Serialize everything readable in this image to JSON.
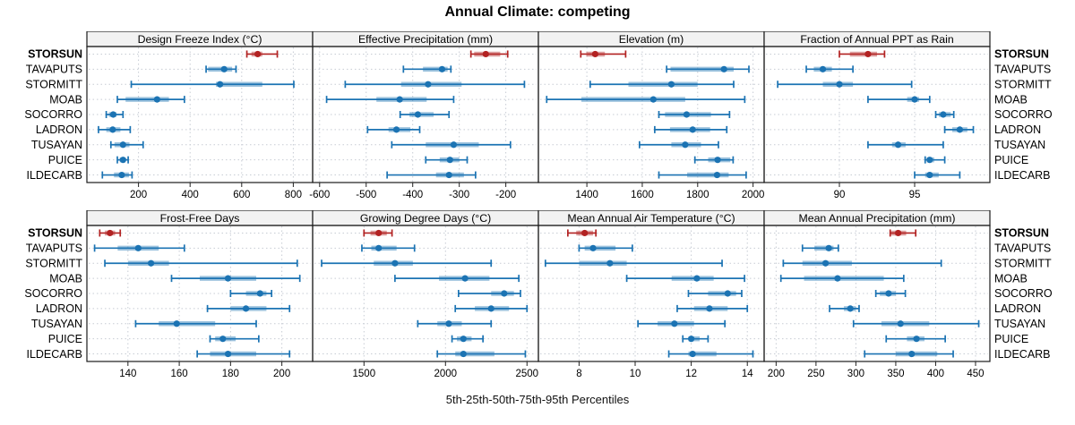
{
  "title": "Annual Climate: competing",
  "caption": "5th-25th-50th-75th-95th Percentiles",
  "highlight_site": "STORSUN",
  "sites": [
    "STORSUN",
    "TAVAPUTS",
    "STORMITT",
    "MOAB",
    "SOCORRO",
    "LADRON",
    "TUSAYAN",
    "PUICE",
    "ILDECARB"
  ],
  "colors": {
    "highlight": "#b22222",
    "normal": "#1b73b3",
    "grid": "#c7ccd4",
    "border": "#1b1b1b",
    "header_bg": "#f2f2f2",
    "tick": "#222222",
    "text": "#000000"
  },
  "percentile_levels": [
    5,
    25,
    50,
    75,
    95
  ],
  "chart_data": [
    {
      "type": "scatter",
      "style": "percentile-dotplot",
      "title": "Design Freeze Index (°C)",
      "xlim": [
        0,
        875
      ],
      "ticks": [
        200,
        400,
        600,
        800
      ],
      "values": [
        [
          620,
          638,
          662,
          680,
          738
        ],
        [
          462,
          470,
          532,
          563,
          578
        ],
        [
          172,
          500,
          516,
          680,
          802
        ],
        [
          118,
          150,
          272,
          318,
          378
        ],
        [
          75,
          85,
          102,
          115,
          140
        ],
        [
          45,
          75,
          100,
          130,
          168
        ],
        [
          93,
          107,
          140,
          165,
          218
        ],
        [
          118,
          127,
          140,
          150,
          160
        ],
        [
          60,
          105,
          135,
          163,
          175
        ]
      ]
    },
    {
      "type": "scatter",
      "style": "percentile-dotplot",
      "title": "Effective Precipitation (mm)",
      "xlim": [
        -615,
        -130
      ],
      "ticks": [
        -600,
        -500,
        -400,
        -300,
        -200
      ],
      "values": [
        [
          -275,
          -268,
          -243,
          -212,
          -196
        ],
        [
          -420,
          -378,
          -337,
          -325,
          -318
        ],
        [
          -545,
          -425,
          -367,
          -295,
          -160
        ],
        [
          -585,
          -478,
          -428,
          -370,
          -312
        ],
        [
          -427,
          -407,
          -389,
          -355,
          -322
        ],
        [
          -497,
          -452,
          -435,
          -405,
          -385
        ],
        [
          -445,
          -372,
          -312,
          -258,
          -190
        ],
        [
          -372,
          -342,
          -320,
          -300,
          -283
        ],
        [
          -455,
          -350,
          -322,
          -290,
          -265
        ]
      ]
    },
    {
      "type": "scatter",
      "style": "percentile-dotplot",
      "title": "Elevation (m)",
      "xlim": [
        1225,
        2040
      ],
      "ticks": [
        1400,
        1600,
        1800,
        2000
      ],
      "values": [
        [
          1378,
          1398,
          1430,
          1465,
          1540
        ],
        [
          1688,
          1702,
          1895,
          1930,
          1985
        ],
        [
          1412,
          1550,
          1705,
          1800,
          1930
        ],
        [
          1255,
          1380,
          1640,
          1755,
          1970
        ],
        [
          1660,
          1682,
          1760,
          1848,
          1915
        ],
        [
          1645,
          1700,
          1782,
          1845,
          1905
        ],
        [
          1590,
          1705,
          1755,
          1812,
          1875
        ],
        [
          1790,
          1838,
          1872,
          1918,
          1928
        ],
        [
          1660,
          1762,
          1870,
          1912,
          1975
        ]
      ]
    },
    {
      "type": "scatter",
      "style": "percentile-dotplot",
      "title": "Fraction of Annual PPT as Rain",
      "xlim": [
        85,
        100
      ],
      "ticks": [
        90,
        95
      ],
      "values": [
        [
          90,
          90.7,
          91.9,
          92.5,
          93
        ],
        [
          87.8,
          88.3,
          88.9,
          89.5,
          90.9
        ],
        [
          85.9,
          88.9,
          90,
          90.9,
          94.8
        ],
        [
          91.9,
          94.5,
          95,
          95.3,
          96
        ],
        [
          96.4,
          96.6,
          96.9,
          97.4,
          97.6
        ],
        [
          97,
          97.5,
          98,
          98.5,
          98.9
        ],
        [
          91.9,
          93.5,
          93.9,
          94.4,
          96.9
        ],
        [
          95.7,
          95.8,
          96,
          96.3,
          97
        ],
        [
          95,
          95.7,
          96,
          96.6,
          98
        ]
      ]
    },
    {
      "type": "scatter",
      "style": "percentile-dotplot",
      "title": "Frost-Free Days",
      "xlim": [
        124,
        212
      ],
      "ticks": [
        140,
        160,
        180,
        200
      ],
      "values": [
        [
          129,
          131,
          133,
          135,
          137
        ],
        [
          127,
          136,
          144,
          152,
          162
        ],
        [
          131,
          140,
          149,
          156,
          206
        ],
        [
          157,
          168,
          179,
          190,
          207
        ],
        [
          180,
          186,
          191.5,
          194,
          196
        ],
        [
          171,
          180,
          186,
          194,
          203
        ],
        [
          143,
          152,
          159,
          174,
          190
        ],
        [
          172,
          174,
          177,
          182,
          191
        ],
        [
          167,
          172,
          179,
          190,
          203
        ]
      ]
    },
    {
      "type": "scatter",
      "style": "percentile-dotplot",
      "title": "Growing Degree Days (°C)",
      "xlim": [
        1185,
        2570
      ],
      "ticks": [
        1500,
        2000,
        2500
      ],
      "values": [
        [
          1500,
          1540,
          1590,
          1640,
          1672
        ],
        [
          1487,
          1545,
          1590,
          1700,
          1810
        ],
        [
          1240,
          1560,
          1690,
          1800,
          2280
        ],
        [
          1690,
          1960,
          2120,
          2270,
          2450
        ],
        [
          2080,
          2280,
          2360,
          2420,
          2460
        ],
        [
          2060,
          2180,
          2280,
          2390,
          2500
        ],
        [
          1830,
          1950,
          2020,
          2100,
          2280
        ],
        [
          2040,
          2070,
          2110,
          2160,
          2230
        ],
        [
          1950,
          2060,
          2110,
          2300,
          2490
        ]
      ]
    },
    {
      "type": "scatter",
      "style": "percentile-dotplot",
      "title": "Mean Annual Air Temperature (°C)",
      "xlim": [
        6.55,
        14.6
      ],
      "ticks": [
        8,
        10,
        12,
        14
      ],
      "values": [
        [
          7.6,
          7.9,
          8.2,
          8.5,
          8.6
        ],
        [
          8,
          8.2,
          8.5,
          9.3,
          9.9
        ],
        [
          6.8,
          8,
          9.1,
          9.7,
          13.1
        ],
        [
          9.7,
          11.3,
          12.2,
          12.8,
          13.9
        ],
        [
          11.9,
          12.6,
          13.3,
          13.6,
          13.8
        ],
        [
          11.5,
          12.1,
          12.65,
          13.3,
          14
        ],
        [
          10.1,
          10.8,
          11.4,
          12.1,
          13.2
        ],
        [
          11.7,
          11.9,
          12,
          12.3,
          12.6
        ],
        [
          11.2,
          11.9,
          12.05,
          12.9,
          14.2
        ]
      ]
    },
    {
      "type": "scatter",
      "style": "percentile-dotplot",
      "title": "Mean Annual Precipitation (mm)",
      "xlim": [
        185,
        468
      ],
      "ticks": [
        200,
        250,
        300,
        350,
        400,
        450
      ],
      "values": [
        [
          343,
          344,
          353,
          363,
          375
        ],
        [
          233,
          248,
          266,
          272,
          278
        ],
        [
          209,
          233,
          262,
          295,
          407
        ],
        [
          206,
          235,
          277,
          335,
          360
        ],
        [
          325,
          330,
          341,
          350,
          362
        ],
        [
          267,
          285,
          293,
          300,
          304
        ],
        [
          297,
          332,
          356,
          392,
          454
        ],
        [
          338,
          364,
          376,
          386,
          412
        ],
        [
          311,
          350,
          370,
          402,
          422
        ]
      ]
    }
  ]
}
